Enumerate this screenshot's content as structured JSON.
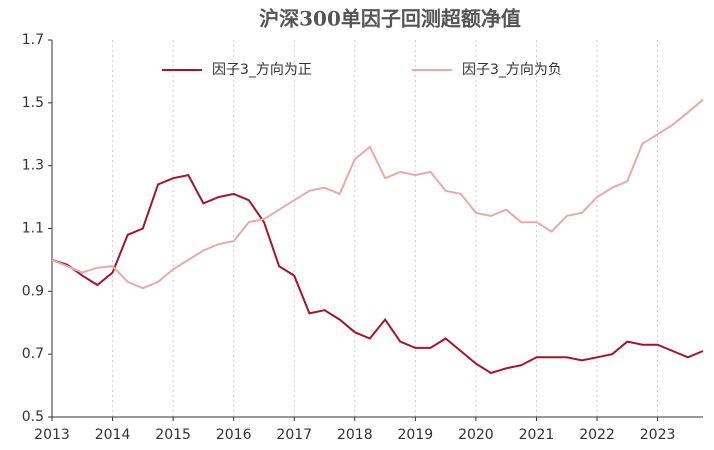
{
  "chart_data": {
    "type": "line",
    "title": "沪深300单因子回测超额净值",
    "x": [
      2013.0,
      2013.25,
      2013.5,
      2013.75,
      2014.0,
      2014.25,
      2014.5,
      2014.75,
      2015.0,
      2015.25,
      2015.5,
      2015.75,
      2016.0,
      2016.25,
      2016.5,
      2016.75,
      2017.0,
      2017.25,
      2017.5,
      2017.75,
      2018.0,
      2018.25,
      2018.5,
      2018.75,
      2019.0,
      2019.25,
      2019.5,
      2019.75,
      2020.0,
      2020.25,
      2020.5,
      2020.75,
      2021.0,
      2021.25,
      2021.5,
      2021.75,
      2022.0,
      2022.25,
      2022.5,
      2022.75,
      2023.0,
      2023.25,
      2023.5,
      2023.75
    ],
    "series": [
      {
        "name": "因子3_方向为正",
        "color": "#a3142f",
        "values": [
          1.0,
          0.985,
          0.95,
          0.92,
          0.96,
          1.08,
          1.1,
          1.24,
          1.26,
          1.27,
          1.18,
          1.2,
          1.21,
          1.19,
          1.12,
          0.98,
          0.95,
          0.83,
          0.84,
          0.81,
          0.77,
          0.75,
          0.81,
          0.74,
          0.72,
          0.72,
          0.75,
          0.71,
          0.67,
          0.64,
          0.655,
          0.665,
          0.69,
          0.69,
          0.69,
          0.68,
          0.69,
          0.7,
          0.74,
          0.73,
          0.73,
          0.71,
          0.69,
          0.71
        ]
      },
      {
        "name": "因子3_方向为负",
        "color": "#e8aaa8",
        "values": [
          1.0,
          0.98,
          0.96,
          0.975,
          0.98,
          0.93,
          0.91,
          0.93,
          0.97,
          1.0,
          1.03,
          1.05,
          1.06,
          1.12,
          1.13,
          1.16,
          1.19,
          1.22,
          1.23,
          1.21,
          1.32,
          1.36,
          1.26,
          1.28,
          1.27,
          1.28,
          1.22,
          1.21,
          1.15,
          1.14,
          1.16,
          1.12,
          1.12,
          1.09,
          1.14,
          1.15,
          1.2,
          1.23,
          1.25,
          1.37,
          1.4,
          1.43,
          1.47,
          1.51
        ]
      }
    ],
    "xlim": [
      2013,
      2023.75
    ],
    "xticks": [
      2013,
      2014,
      2015,
      2016,
      2017,
      2018,
      2019,
      2020,
      2021,
      2022,
      2023
    ],
    "ylim": [
      0.5,
      1.7
    ],
    "yticks": [
      0.5,
      0.7,
      0.9,
      1.1,
      1.3,
      1.5,
      1.7
    ],
    "grid": true
  }
}
